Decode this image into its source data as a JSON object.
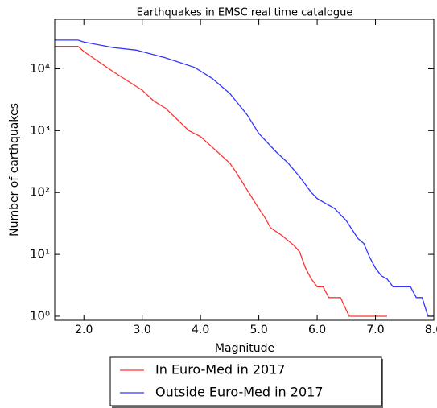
{
  "chart_data": {
    "type": "line",
    "title": "Earthquakes in EMSC real time catalogue",
    "x_label": "Magnitude",
    "y_label": "Number of earthquakes",
    "log_y": true,
    "legend": "below",
    "xlim": [
      1.5,
      8.0
    ],
    "ylim": [
      0.86,
      63000
    ],
    "xticks": [
      {
        "value": 2,
        "label": "2.0"
      },
      {
        "value": 3,
        "label": "3.0"
      },
      {
        "value": 4,
        "label": "4.0"
      },
      {
        "value": 5,
        "label": "5.0"
      },
      {
        "value": 6,
        "label": "6.0"
      },
      {
        "value": 7,
        "label": "7.0"
      },
      {
        "value": 8,
        "label": "8.0"
      }
    ],
    "yticks": [
      {
        "value": 1,
        "label": "10⁰"
      },
      {
        "value": 10,
        "label": "10¹"
      },
      {
        "value": 100,
        "label": "10²"
      },
      {
        "value": 1000,
        "label": "10³"
      },
      {
        "value": 10000,
        "label": "10⁴"
      }
    ],
    "series": [
      {
        "name": "In Euro-Med in 2017",
        "color": "#ff3333",
        "x": [
          1.5,
          1.9,
          2.0,
          2.5,
          3.0,
          3.2,
          3.4,
          3.8,
          4.0,
          4.5,
          4.6,
          4.8,
          5.0,
          5.1,
          5.2,
          5.4,
          5.6,
          5.7,
          5.8,
          5.9,
          6.0,
          6.1,
          6.2,
          6.4,
          6.55,
          7.2
        ],
        "values": [
          23000,
          23000,
          19000,
          9000,
          4500,
          3000,
          2300,
          1000,
          800,
          300,
          220,
          110,
          55,
          40,
          27,
          20,
          14,
          11,
          6,
          4,
          3,
          3,
          2,
          2,
          1,
          1
        ]
      },
      {
        "name": "Outside Euro-Med in 2017",
        "color": "#3333ff",
        "x": [
          1.5,
          1.9,
          2.0,
          2.5,
          2.9,
          3.4,
          3.9,
          4.2,
          4.5,
          4.8,
          5.0,
          5.3,
          5.5,
          5.7,
          5.9,
          6.0,
          6.3,
          6.5,
          6.7,
          6.8,
          6.9,
          7.0,
          7.1,
          7.2,
          7.3,
          7.6,
          7.7,
          7.8,
          7.9,
          8.0
        ],
        "values": [
          29000,
          29000,
          27000,
          22000,
          20000,
          15000,
          10500,
          7000,
          4000,
          1800,
          900,
          450,
          300,
          180,
          100,
          80,
          55,
          35,
          18,
          15,
          9,
          6,
          4.5,
          4,
          3,
          3,
          2,
          2,
          1,
          1
        ]
      }
    ]
  }
}
